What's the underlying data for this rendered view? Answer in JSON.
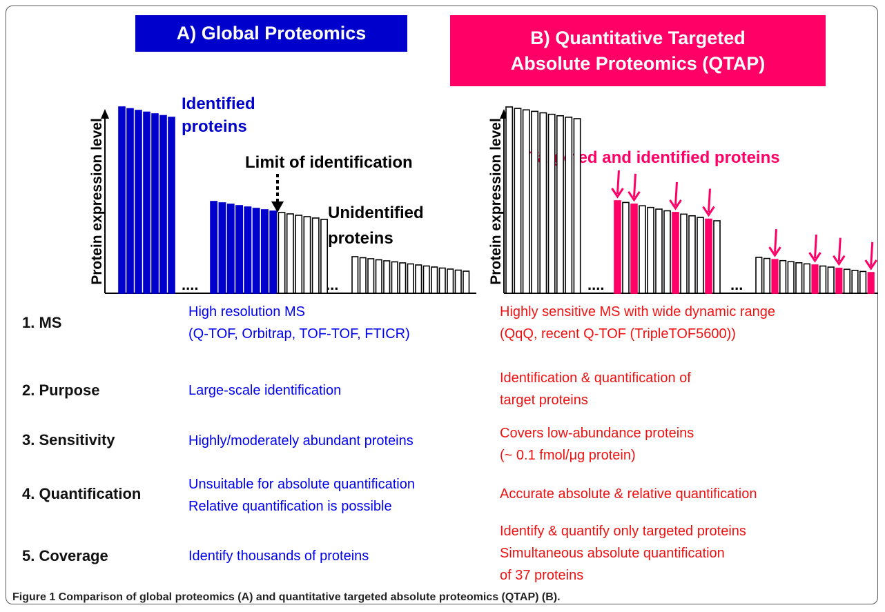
{
  "panel_a": {
    "title": "A) Global Proteomics",
    "y_axis_label": "Protein expression  level",
    "annotations": [
      "Identified",
      "proteins",
      "Limit of identification",
      "Unidentified",
      "proteins"
    ]
  },
  "panel_b": {
    "title": [
      "B) Quantitative Targeted",
      "Absolute Proteomics (QTAP)"
    ],
    "y_axis_label": "Protein expression  level",
    "annotations": [
      "Targeted and identified proteins"
    ]
  },
  "rows": [
    {
      "label": "1. MS",
      "a": [
        "High resolution MS",
        "(Q-TOF, Orbitrap, TOF-TOF, FTICR)"
      ],
      "b": [
        "Highly sensitive MS with wide dynamic range",
        "(QqQ, recent Q-TOF (TripleTOF5600))"
      ]
    },
    {
      "label": "2. Purpose",
      "a": [
        "Large-scale identification"
      ],
      "b": [
        "Identification & quantification of",
        "target proteins"
      ]
    },
    {
      "label": "3. Sensitivity",
      "a": [
        "Highly/moderately abundant proteins"
      ],
      "b": [
        "Covers low-abundance proteins",
        "(~ 0.1 fmol/μg protein)"
      ]
    },
    {
      "label": "4. Quantification",
      "a": [
        "Unsuitable for absolute quantification",
        "Relative quantification is possible"
      ],
      "b": [
        "Accurate absolute & relative quantification"
      ]
    },
    {
      "label": "5. Coverage",
      "a": [
        "Identify thousands of proteins"
      ],
      "b": [
        "Identify & quantify only targeted proteins",
        "Simultaneous absolute quantification",
        "of 37 proteins"
      ]
    }
  ],
  "caption": "Figure 1 Comparison of global proteomics (A) and quantitative targeted absolute proteomics (QTAP) (B)."
}
